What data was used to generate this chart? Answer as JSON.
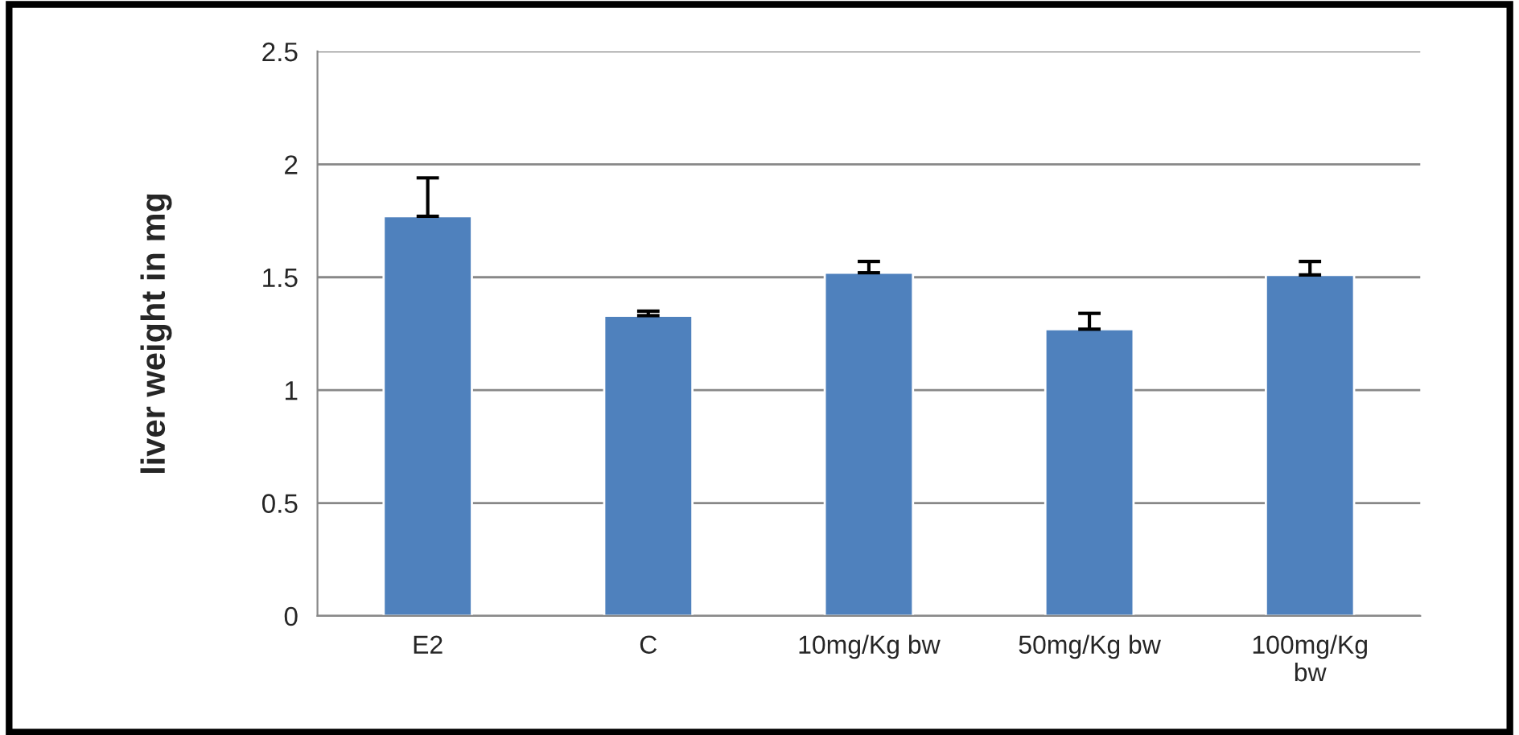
{
  "chart_data": {
    "type": "bar",
    "ylabel": "liver weight in mg",
    "categories": [
      "E2",
      "C",
      "10mg/Kg bw",
      "50mg/Kg bw",
      "100mg/Kg\nbw"
    ],
    "values": [
      1.77,
      1.33,
      1.52,
      1.27,
      1.51
    ],
    "errors": [
      [
        1.77,
        1.94
      ],
      [
        1.33,
        1.35
      ],
      [
        1.52,
        1.57
      ],
      [
        1.27,
        1.34
      ],
      [
        1.51,
        1.57
      ]
    ],
    "color": "#4f81bd",
    "ylim": [
      0,
      2.5
    ],
    "yticks": [
      0,
      0.5,
      1,
      1.5,
      2,
      2.5
    ],
    "grid": "y"
  }
}
